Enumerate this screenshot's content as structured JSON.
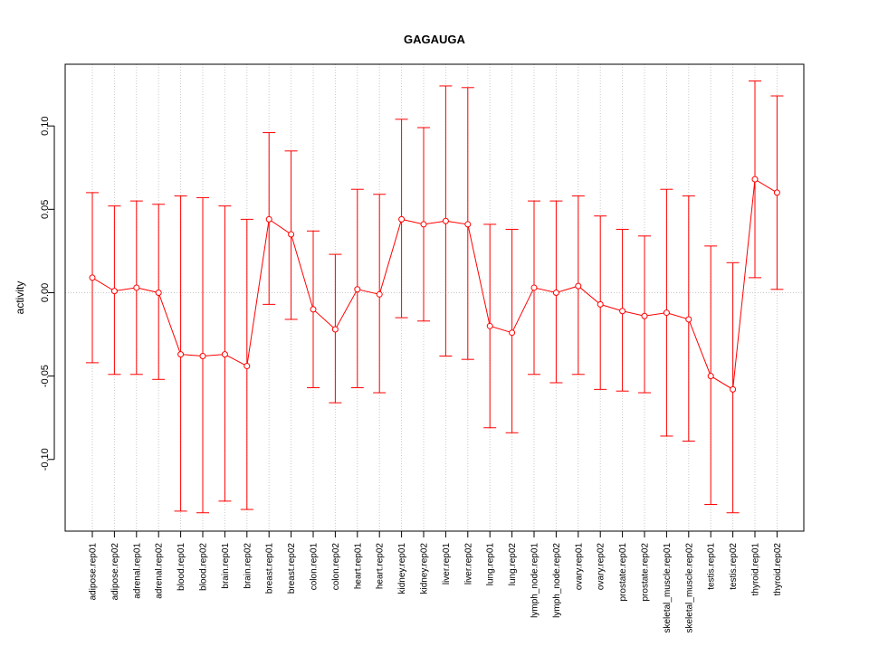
{
  "chart_data": {
    "type": "line",
    "title": "GAGAUGA",
    "xlabel": "",
    "ylabel": "activity",
    "ylim": [
      -0.143,
      0.137
    ],
    "yticks": [
      -0.1,
      -0.05,
      0.0,
      0.05,
      0.1
    ],
    "ytick_labels": [
      "-0.10",
      "-0.05",
      "0.00",
      "0.05",
      "0.10"
    ],
    "grid": true,
    "color": "#ff0000",
    "grid_color": "#c8c8c8",
    "categories": [
      "adipose.rep01",
      "adipose.rep02",
      "adrenal.rep01",
      "adrenal.rep02",
      "blood.rep01",
      "blood.rep02",
      "brain.rep01",
      "brain.rep02",
      "breast.rep01",
      "breast.rep02",
      "colon.rep01",
      "colon.rep02",
      "heart.rep01",
      "heart.rep02",
      "kidney.rep01",
      "kidney.rep02",
      "liver.rep01",
      "liver.rep02",
      "lung.rep01",
      "lung.rep02",
      "lymph_node.rep01",
      "lymph_node.rep02",
      "ovary.rep01",
      "ovary.rep02",
      "prostate.rep01",
      "prostate.rep02",
      "skeletal_muscle.rep01",
      "skeletal_muscle.rep02",
      "testis.rep01",
      "testis.rep02",
      "thyroid.rep01",
      "thyroid.rep02"
    ],
    "series": [
      {
        "name": "activity",
        "values": [
          0.009,
          0.001,
          0.003,
          0.0,
          -0.037,
          -0.038,
          -0.037,
          -0.044,
          0.044,
          0.035,
          -0.01,
          -0.022,
          0.002,
          -0.001,
          0.044,
          0.041,
          0.043,
          0.041,
          -0.02,
          -0.024,
          0.003,
          0.0,
          0.004,
          -0.007,
          -0.011,
          -0.014,
          -0.012,
          -0.016,
          -0.05,
          -0.058,
          0.068,
          0.06
        ],
        "upper": [
          0.06,
          0.052,
          0.055,
          0.053,
          0.058,
          0.057,
          0.052,
          0.044,
          0.096,
          0.085,
          0.037,
          0.023,
          0.062,
          0.059,
          0.104,
          0.099,
          0.124,
          0.123,
          0.041,
          0.038,
          0.055,
          0.055,
          0.058,
          0.046,
          0.038,
          0.034,
          0.062,
          0.058,
          0.028,
          0.018,
          0.127,
          0.118
        ],
        "lower": [
          -0.042,
          -0.049,
          -0.049,
          -0.052,
          -0.131,
          -0.132,
          -0.125,
          -0.13,
          -0.007,
          -0.016,
          -0.057,
          -0.066,
          -0.057,
          -0.06,
          -0.015,
          -0.017,
          -0.038,
          -0.04,
          -0.081,
          -0.084,
          -0.049,
          -0.054,
          -0.049,
          -0.058,
          -0.059,
          -0.06,
          -0.086,
          -0.089,
          -0.127,
          -0.132,
          0.009,
          0.002
        ]
      }
    ]
  }
}
